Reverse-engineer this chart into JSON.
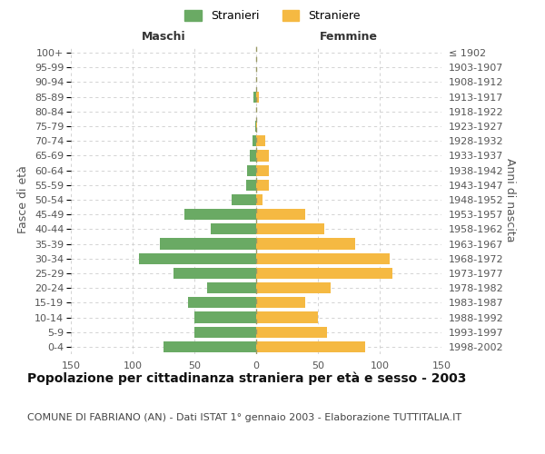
{
  "age_groups": [
    "0-4",
    "5-9",
    "10-14",
    "15-19",
    "20-24",
    "25-29",
    "30-34",
    "35-39",
    "40-44",
    "45-49",
    "50-54",
    "55-59",
    "60-64",
    "65-69",
    "70-74",
    "75-79",
    "80-84",
    "85-89",
    "90-94",
    "95-99",
    "100+"
  ],
  "birth_years": [
    "1998-2002",
    "1993-1997",
    "1988-1992",
    "1983-1987",
    "1978-1982",
    "1973-1977",
    "1968-1972",
    "1963-1967",
    "1958-1962",
    "1953-1957",
    "1948-1952",
    "1943-1947",
    "1938-1942",
    "1933-1937",
    "1928-1932",
    "1923-1927",
    "1918-1922",
    "1913-1917",
    "1908-1912",
    "1903-1907",
    "≤ 1902"
  ],
  "males": [
    75,
    50,
    50,
    55,
    40,
    67,
    95,
    78,
    37,
    58,
    20,
    8,
    7,
    5,
    3,
    1,
    0,
    2,
    0,
    0,
    0
  ],
  "females": [
    88,
    57,
    50,
    40,
    60,
    110,
    108,
    80,
    55,
    40,
    5,
    10,
    10,
    10,
    7,
    1,
    0,
    2,
    0,
    0,
    0
  ],
  "male_color": "#6aaa64",
  "female_color": "#f5b942",
  "center_line_color": "#888844",
  "grid_color": "#cccccc",
  "background_color": "#ffffff",
  "title": "Popolazione per cittadinanza straniera per età e sesso - 2003",
  "subtitle": "COMUNE DI FABRIANO (AN) - Dati ISTAT 1° gennaio 2003 - Elaborazione TUTTITALIA.IT",
  "xlabel_left": "Maschi",
  "xlabel_right": "Femmine",
  "ylabel_left": "Fasce di età",
  "ylabel_right": "Anni di nascita",
  "legend_males": "Stranieri",
  "legend_females": "Straniere",
  "xlim": 150,
  "title_fontsize": 10,
  "subtitle_fontsize": 8,
  "label_fontsize": 9,
  "tick_fontsize": 8
}
